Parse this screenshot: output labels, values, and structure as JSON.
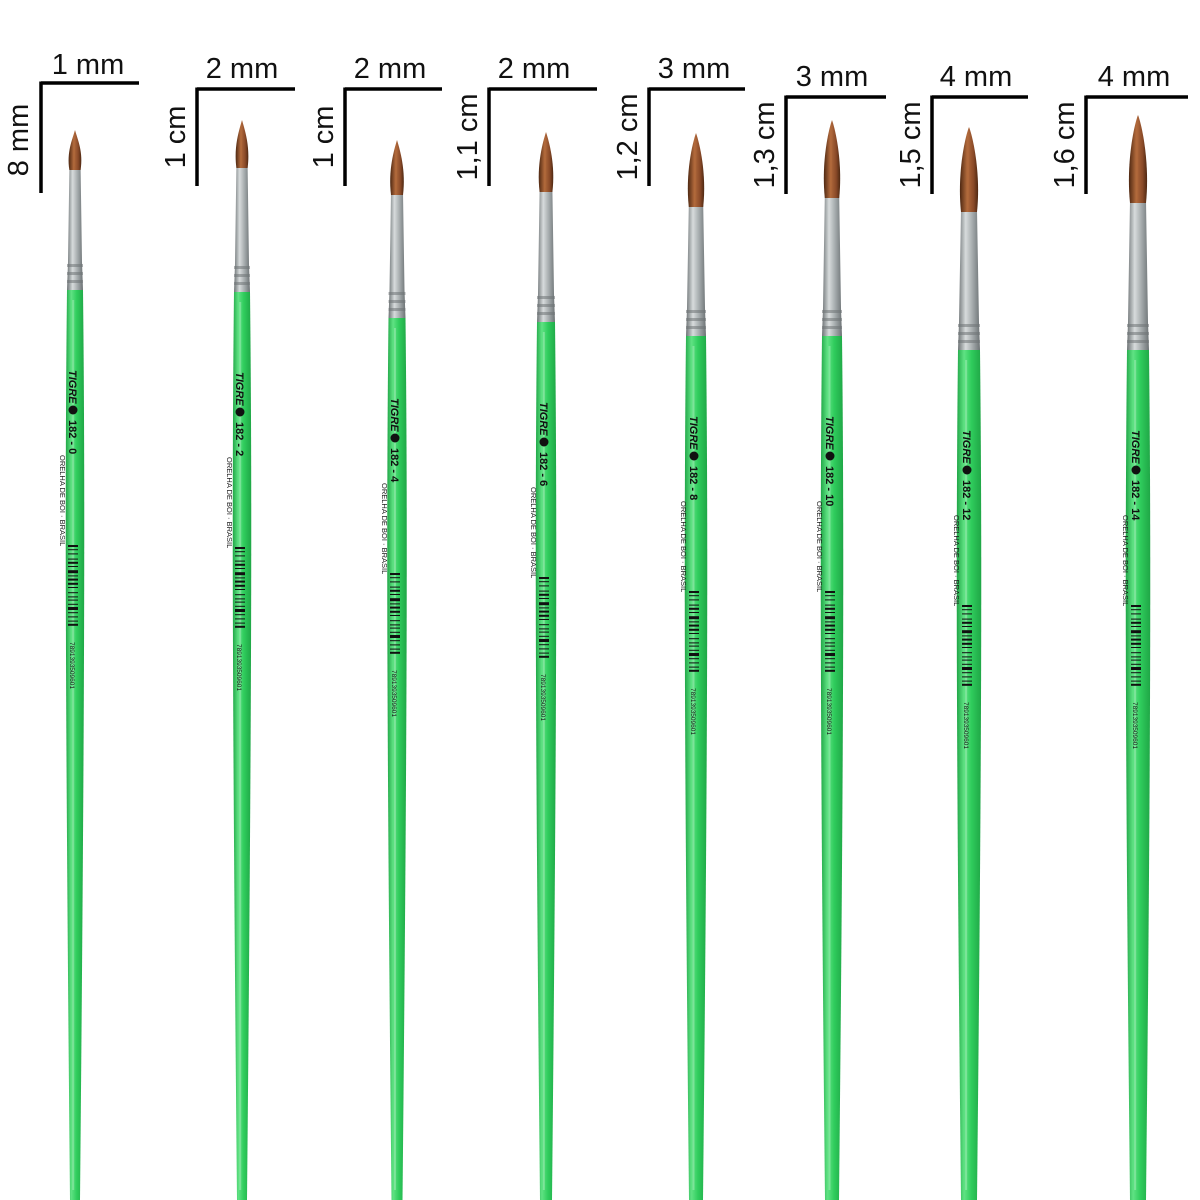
{
  "brushes": [
    {
      "id": "182-0",
      "width_label": "1 mm",
      "height_label": "8 mm",
      "brand": "TIGRE",
      "model": "182 - 0",
      "text": "ORELHA DE BOI · BRASIL",
      "barcode_number": "7891393509601"
    },
    {
      "id": "182-2",
      "width_label": "2 mm",
      "height_label": "1 cm",
      "brand": "TIGRE",
      "model": "182 - 2",
      "text": "ORELHA DE BOI · BRASIL",
      "barcode_number": "7891393509601"
    },
    {
      "id": "182-4",
      "width_label": "2 mm",
      "height_label": "1 cm",
      "brand": "TIGRE",
      "model": "182 - 4",
      "text": "ORELHA DE BOI · BRASIL",
      "barcode_number": "7891393509601"
    },
    {
      "id": "182-6",
      "width_label": "2 mm",
      "height_label": "1,1 cm",
      "brand": "TIGRE",
      "model": "182 - 6",
      "text": "ORELHA DE BOI · BRASIL",
      "barcode_number": "7891393509601"
    },
    {
      "id": "182-8",
      "width_label": "3 mm",
      "height_label": "1,2 cm",
      "brand": "TIGRE",
      "model": "182 - 8",
      "text": "ORELHA DE BOI · BRASIL",
      "barcode_number": "7891393509601"
    },
    {
      "id": "182-10",
      "width_label": "3 mm",
      "height_label": "1,3 cm",
      "brand": "TIGRE",
      "model": "182 - 10",
      "text": "ORELHA DE BOI · BRASIL",
      "barcode_number": "7891393509601"
    },
    {
      "id": "182-12",
      "width_label": "4 mm",
      "height_label": "1,5 cm",
      "brand": "TIGRE",
      "model": "182 - 12",
      "text": "ORELHA DE BOI · BRASIL",
      "barcode_number": "7891393509601"
    },
    {
      "id": "182-14",
      "width_label": "4 mm",
      "height_label": "1,6 cm",
      "brand": "TIGRE",
      "model": "182 - 14",
      "text": "ORELHA DE BOI · BRASIL",
      "barcode_number": "7891393509601"
    }
  ],
  "colors": {
    "handle": "#2fcc5c",
    "handle_highlight": "#5fe283",
    "handle_shadow": "#1fa646",
    "ferrule": "#9ea4a6",
    "ferrule_light": "#d7dbdc",
    "ferrule_dark": "#6d7375",
    "bristle": "#8a4a28",
    "bristle_dark": "#4e2812",
    "bristle_light": "#b26a3c",
    "line": "#000000"
  }
}
